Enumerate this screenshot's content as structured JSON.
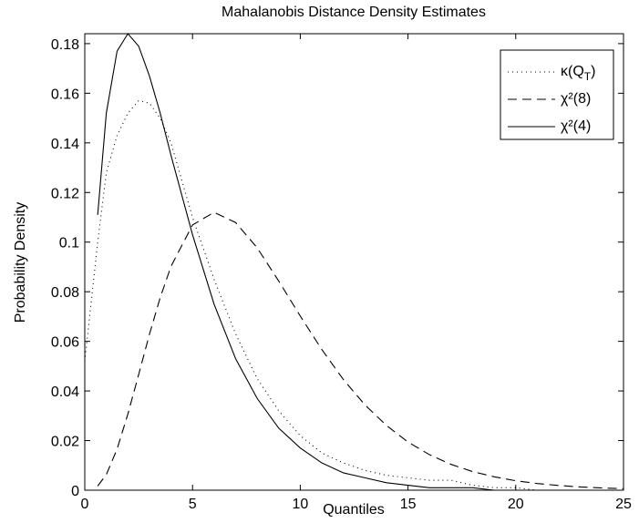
{
  "chart_data": {
    "type": "line",
    "title": "Mahalanobis Distance Density Estimates",
    "xlabel": "Quantiles",
    "ylabel": "Probability Density",
    "x": [
      0,
      0.6,
      1,
      1.5,
      2,
      2.5,
      3,
      3.5,
      4,
      5,
      6,
      7,
      8,
      9,
      10,
      11,
      12,
      13,
      14,
      15,
      16,
      17,
      18,
      19,
      20,
      21,
      22,
      23,
      24,
      25
    ],
    "series": [
      {
        "name": "κ(QT)",
        "color": "#000000",
        "style": "dotted",
        "values": [
          0.052,
          0.1,
          0.128,
          0.143,
          0.152,
          0.157,
          0.156,
          0.15,
          0.14,
          0.11,
          0.085,
          0.063,
          0.045,
          0.032,
          0.022,
          0.015,
          0.011,
          0.008,
          0.006,
          0.005,
          0.004,
          0.004,
          0.002,
          0.001,
          0.001,
          0,
          0,
          0,
          0,
          0
        ]
      },
      {
        "name": "χ²(8)",
        "color": "#000000",
        "style": "dashed",
        "values": [
          null,
          0.0017,
          0.0063,
          0.0166,
          0.0307,
          0.0466,
          0.0628,
          0.0776,
          0.0902,
          0.1069,
          0.112,
          0.1079,
          0.0977,
          0.0843,
          0.0702,
          0.0567,
          0.0446,
          0.0344,
          0.0261,
          0.0194,
          0.0143,
          0.0104,
          0.0075,
          0.0054,
          0.0038,
          0.0027,
          0.0019,
          0.0013,
          0.0009,
          0.0006
        ]
      },
      {
        "name": "χ²(4)",
        "color": "#000000",
        "style": "solid",
        "values": [
          null,
          0.111,
          0.152,
          0.177,
          0.184,
          0.179,
          0.167,
          0.152,
          0.135,
          0.103,
          0.075,
          0.053,
          0.037,
          0.025,
          0.017,
          0.011,
          0.007,
          0.005,
          0.003,
          0.002,
          0.001,
          0.001,
          0.001,
          0,
          0,
          0,
          0,
          0,
          0,
          0
        ]
      }
    ],
    "xlim": [
      0,
      25
    ],
    "xticks": [
      0,
      5,
      10,
      15,
      20,
      25
    ],
    "ylim": [
      0,
      0.184
    ],
    "yticks": [
      0,
      0.02,
      0.04,
      0.06,
      0.08,
      0.1,
      0.12,
      0.14,
      0.16,
      0.18
    ],
    "legend": "upper right",
    "grid": false
  }
}
